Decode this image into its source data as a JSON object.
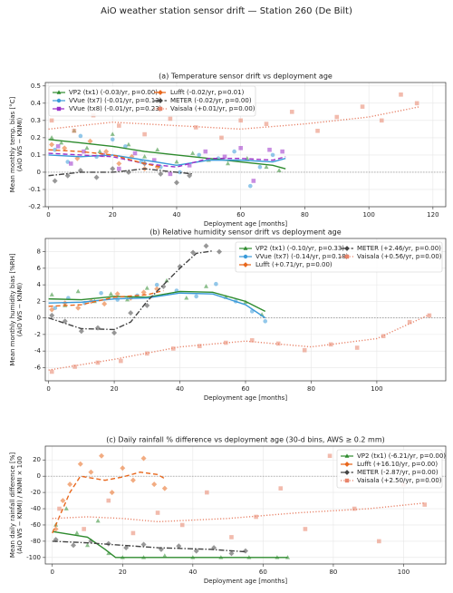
{
  "title": "AiO weather station sensor drift — Station 260 (De Bilt)",
  "chart_data": [
    {
      "type": "scatter",
      "title": "(a)  Temperature sensor drift vs deployment age",
      "xlabel": "Deployment age [months]",
      "ylabel": [
        "Mean monthly temp. bias [°C]",
        "(AiO WS − KNMI)"
      ],
      "xlim": [
        -1,
        124
      ],
      "ylim": [
        -0.2,
        0.52
      ],
      "xticks": [
        0,
        20,
        40,
        60,
        80,
        100,
        120
      ],
      "yticks": [
        -0.2,
        -0.1,
        0.0,
        0.1,
        0.2,
        0.3,
        0.4,
        0.5
      ],
      "hline": 0,
      "grid": true,
      "legend": "upper left",
      "legend_columns": 2,
      "series": [
        {
          "name": "VP2 (tx1)  (-0.03/yr, p=0.00)",
          "color": "#2e8b2e",
          "marker": "triangle",
          "line": "solid",
          "x": [
            1,
            4,
            8,
            12,
            16,
            20,
            25,
            30,
            34,
            40,
            45,
            50,
            56,
            62,
            68,
            72
          ],
          "values": [
            0.2,
            0.17,
            0.24,
            0.14,
            0.12,
            0.22,
            0.16,
            0.09,
            0.13,
            0.06,
            0.11,
            0.07,
            0.05,
            0.08,
            0.03,
            0.01
          ],
          "trend_x": [
            0,
            10,
            20,
            30,
            40,
            50,
            60,
            70,
            74
          ],
          "trend": [
            0.19,
            0.17,
            0.15,
            0.12,
            0.1,
            0.08,
            0.06,
            0.04,
            0.02
          ]
        },
        {
          "name": "VVue (tx7)  (-0.01/yr, p=0.13)",
          "color": "#3a9ad9",
          "marker": "circle",
          "line": "solid",
          "x": [
            2,
            6,
            10,
            15,
            20,
            24,
            29,
            35,
            41,
            47,
            53,
            58,
            63,
            66,
            70
          ],
          "values": [
            0.13,
            0.06,
            0.21,
            0.09,
            0.19,
            0.15,
            0.06,
            0.03,
            0.0,
            0.1,
            0.08,
            0.12,
            -0.08,
            0.03,
            0.1
          ],
          "trend_x": [
            0,
            10,
            20,
            30,
            40,
            50,
            60,
            70,
            74
          ],
          "trend": [
            0.1,
            0.09,
            0.1,
            0.07,
            0.04,
            0.07,
            0.07,
            0.06,
            0.08
          ]
        },
        {
          "name": "VVue (tx8)  (-0.01/yr, p=0.23)",
          "color": "#9b30c8",
          "marker": "square",
          "line": "dashed",
          "x": [
            3,
            7,
            11,
            17,
            22,
            27,
            33,
            38,
            44,
            49,
            55,
            60,
            64,
            69,
            73
          ],
          "values": [
            0.15,
            0.05,
            0.12,
            0.1,
            0.02,
            0.11,
            0.07,
            -0.01,
            0.04,
            0.12,
            0.09,
            0.14,
            -0.05,
            0.13,
            0.12
          ],
          "trend_x": [
            0,
            10,
            20,
            30,
            40,
            50,
            60,
            70,
            74
          ],
          "trend": [
            0.11,
            0.1,
            0.09,
            0.05,
            0.03,
            0.08,
            0.08,
            0.07,
            0.09
          ]
        },
        {
          "name": "Lufft  (-0.02/yr, p=0.01)",
          "color": "#e8671c",
          "marker": "diamond",
          "line": "dashed",
          "x": [
            1,
            5,
            9,
            13,
            18,
            22,
            26,
            30,
            34
          ],
          "values": [
            0.16,
            0.14,
            0.08,
            0.18,
            0.12,
            0.05,
            0.09,
            0.02,
            0.03
          ],
          "trend_x": [
            0,
            10,
            20,
            30,
            35
          ],
          "trend": [
            0.13,
            0.12,
            0.1,
            0.05,
            0.03
          ]
        },
        {
          "name": "METER  (-0.02/yr, p=0.00)",
          "color": "#444444",
          "marker": "diamond",
          "line": "dashdot",
          "x": [
            2,
            6,
            10,
            15,
            20,
            25,
            30,
            35,
            40,
            44
          ],
          "values": [
            -0.05,
            -0.02,
            0.01,
            -0.03,
            0.02,
            0.0,
            0.05,
            -0.01,
            -0.06,
            -0.02
          ],
          "trend_x": [
            0,
            10,
            20,
            30,
            40,
            45
          ],
          "trend": [
            -0.02,
            0.0,
            0.0,
            0.02,
            0.0,
            -0.01
          ]
        },
        {
          "name": "Vaisala  (+0.01/yr, p=0.00)",
          "color": "#e8846a",
          "marker": "square",
          "line": "dotted",
          "x": [
            1,
            8,
            14,
            22,
            30,
            38,
            46,
            54,
            60,
            68,
            76,
            84,
            90,
            98,
            104,
            110,
            115
          ],
          "values": [
            0.3,
            0.24,
            0.33,
            0.27,
            0.22,
            0.31,
            0.26,
            0.2,
            0.3,
            0.28,
            0.35,
            0.24,
            0.32,
            0.38,
            0.3,
            0.45,
            0.4
          ],
          "trend_x": [
            0,
            20,
            40,
            60,
            80,
            100,
            116
          ],
          "trend": [
            0.25,
            0.29,
            0.27,
            0.25,
            0.28,
            0.32,
            0.38
          ]
        }
      ]
    },
    {
      "type": "scatter",
      "title": "(b)  Relative humidity sensor drift vs deployment age",
      "xlabel": "Deployment age [months]",
      "ylabel": [
        "Mean monthly humidity bias [%RH]",
        "(AiO WS − KNMI)"
      ],
      "xlim": [
        -1,
        121
      ],
      "ylim": [
        -7.6,
        9.6
      ],
      "xticks": [
        0,
        20,
        40,
        60,
        80,
        100
      ],
      "yticks": [
        -6,
        -4,
        -2,
        0,
        2,
        4,
        6,
        8
      ],
      "hline": 0,
      "grid": true,
      "legend": "upper right",
      "legend_columns": 2,
      "series": [
        {
          "name": "VP2 (tx1)  (-0.10/yr, p=0.33)",
          "color": "#2e8b2e",
          "marker": "triangle",
          "line": "solid",
          "x": [
            1,
            5,
            9,
            14,
            19,
            24,
            30,
            36,
            42,
            48,
            54,
            60,
            65
          ],
          "values": [
            2.8,
            1.5,
            3.2,
            2.0,
            2.9,
            2.2,
            3.6,
            4.5,
            2.4,
            3.8,
            2.5,
            1.9,
            0.4
          ],
          "trend_x": [
            0,
            10,
            20,
            30,
            40,
            50,
            60,
            66
          ],
          "trend": [
            2.3,
            2.2,
            2.6,
            2.5,
            3.2,
            3.1,
            2.0,
            0.8
          ]
        },
        {
          "name": "VVue (tx7)  (-0.14/yr, p=0.18)",
          "color": "#3a9ad9",
          "marker": "circle",
          "line": "solid",
          "x": [
            2,
            6,
            11,
            16,
            21,
            27,
            33,
            39,
            45,
            51,
            57,
            62,
            66
          ],
          "values": [
            1.2,
            2.4,
            1.8,
            3.0,
            2.2,
            2.7,
            4.0,
            3.3,
            2.6,
            4.1,
            2.0,
            0.8,
            -0.4
          ],
          "trend_x": [
            0,
            10,
            20,
            30,
            40,
            50,
            60,
            66
          ],
          "trend": [
            1.8,
            1.9,
            2.3,
            2.4,
            3.0,
            2.9,
            1.6,
            0.0
          ]
        },
        {
          "name": "Lufft  (+0.71/yr, p=0.00)",
          "color": "#e8671c",
          "marker": "diamond",
          "line": "dashed",
          "x": [
            1,
            5,
            9,
            13,
            17,
            21,
            25,
            29,
            33
          ],
          "values": [
            1.0,
            1.8,
            1.2,
            2.0,
            1.7,
            2.9,
            2.4,
            3.1,
            3.5
          ],
          "trend_x": [
            0,
            10,
            20,
            30,
            35
          ],
          "trend": [
            1.4,
            1.6,
            2.5,
            2.8,
            3.3
          ]
        },
        {
          "name": "METER  (+2.46/yr, p=0.00)",
          "color": "#444444",
          "marker": "diamond",
          "line": "dashdot",
          "x": [
            1,
            5,
            10,
            15,
            20,
            25,
            30,
            35,
            40,
            44,
            48,
            52
          ],
          "values": [
            0.3,
            -0.4,
            -1.6,
            -1.2,
            -1.8,
            0.6,
            1.5,
            3.8,
            6.2,
            7.9,
            8.7,
            8.0
          ],
          "trend_x": [
            0,
            10,
            20,
            25,
            30,
            40,
            45,
            50
          ],
          "trend": [
            0,
            -1.3,
            -1.4,
            -0.5,
            2.0,
            6.0,
            7.8,
            8.1
          ]
        },
        {
          "name": "Vaisala  (+0.56/yr, p=0.00)",
          "color": "#e8846a",
          "marker": "square",
          "line": "dotted",
          "x": [
            1,
            8,
            15,
            22,
            30,
            38,
            46,
            54,
            62,
            70,
            78,
            86,
            94,
            102,
            110,
            116
          ],
          "values": [
            -6.5,
            -5.9,
            -5.4,
            -5.2,
            -4.3,
            -3.7,
            -3.4,
            -3.0,
            -2.7,
            -3.1,
            -3.9,
            -3.2,
            -3.6,
            -2.2,
            -0.5,
            0.3
          ],
          "trend_x": [
            0,
            20,
            40,
            60,
            80,
            100,
            116
          ],
          "trend": [
            -6.3,
            -5.0,
            -3.5,
            -2.8,
            -3.5,
            -2.5,
            0.4
          ]
        }
      ]
    },
    {
      "type": "scatter",
      "title": "(c)  Daily rainfall % difference vs deployment age  (30-d bins, AWS ≥ 0.2 mm)",
      "xlabel": "Deployment age [months]",
      "ylabel": [
        "Mean daily rainfall difference [%]",
        "(AiO WS − KNMI) / KNMI × 100"
      ],
      "xlim": [
        -2,
        112
      ],
      "ylim": [
        -108,
        37
      ],
      "xticks": [
        0,
        20,
        40,
        60,
        80,
        100
      ],
      "yticks": [
        -100,
        -80,
        -60,
        -40,
        -20,
        0,
        20
      ],
      "hline": 0,
      "grid": true,
      "legend": "upper right",
      "legend_columns": 1,
      "series": [
        {
          "name": "VP2 (tx1)  (-6.21/yr, p=0.00)",
          "color": "#2e8b2e",
          "marker": "triangle",
          "line": "solid",
          "x": [
            1,
            4,
            7,
            10,
            13,
            16,
            20,
            26,
            32,
            40,
            48,
            56,
            64,
            67
          ],
          "values": [
            -60,
            -40,
            -70,
            -85,
            -55,
            -95,
            -100,
            -100,
            -98,
            -100,
            -100,
            -100,
            -100,
            -100
          ],
          "trend_x": [
            0,
            10,
            15,
            18,
            30,
            67
          ],
          "trend": [
            -68,
            -75,
            -90,
            -100,
            -100,
            -100
          ]
        },
        {
          "name": "Lufft  (+16.10/yr, p=0.00)",
          "color": "#e8671c",
          "marker": "diamond",
          "line": "dashed",
          "x": [
            1,
            3,
            5,
            8,
            11,
            14,
            17,
            20,
            23,
            26,
            29,
            32
          ],
          "values": [
            -65,
            -30,
            -10,
            15,
            5,
            25,
            -20,
            10,
            -5,
            22,
            -10,
            -15
          ],
          "trend_x": [
            0,
            5,
            8,
            15,
            20,
            25,
            30,
            32
          ],
          "trend": [
            -70,
            -20,
            0,
            -5,
            -1,
            5,
            2,
            -3
          ]
        },
        {
          "name": "METER  (-2.87/yr, p=0.00)",
          "color": "#444444",
          "marker": "diamond",
          "line": "dashdot",
          "x": [
            1,
            6,
            11,
            16,
            21,
            26,
            31,
            36,
            41,
            46,
            51,
            55
          ],
          "values": [
            -78,
            -85,
            -80,
            -83,
            -88,
            -84,
            -90,
            -86,
            -92,
            -88,
            -95,
            -92
          ],
          "trend_x": [
            0,
            10,
            20,
            30,
            45,
            55
          ],
          "trend": [
            -80,
            -82,
            -85,
            -88,
            -90,
            -93
          ]
        },
        {
          "name": "Vaisala  (+2.50/yr, p=0.00)",
          "color": "#e8846a",
          "marker": "square",
          "line": "dotted",
          "x": [
            2,
            9,
            16,
            23,
            30,
            37,
            44,
            51,
            58,
            65,
            72,
            79,
            86,
            93,
            100,
            106
          ],
          "values": [
            -40,
            -65,
            -30,
            -70,
            -45,
            -60,
            -20,
            -75,
            -50,
            -15,
            -65,
            25,
            -40,
            -80,
            -10,
            -35
          ],
          "trend_x": [
            0,
            10,
            20,
            30,
            50,
            70,
            90,
            106
          ],
          "trend": [
            -52,
            -50,
            -52,
            -56,
            -52,
            -45,
            -40,
            -33
          ]
        }
      ]
    }
  ]
}
